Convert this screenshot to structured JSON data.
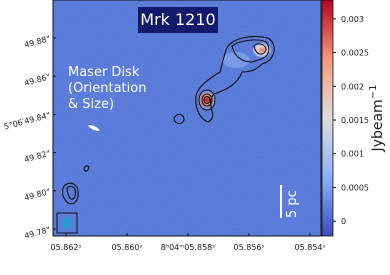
{
  "chart_data": {
    "type": "image",
    "title": "Mrk 1210",
    "annotation": [
      "Maser Disk",
      "(Orientation",
      "& Size)"
    ],
    "scale_bar_label": "5 pc",
    "x_tick_labels": [
      "05.862ˢ",
      "05.860ˢ",
      "8ʰ04ᵐ05.858ˢ",
      "05.856ˢ",
      "05.854ˢ"
    ],
    "y_tick_labels": [
      "49.88\"",
      "49.86\"",
      "5°06′49.84\"",
      "49.82\"",
      "49.80\"",
      "49.78\""
    ],
    "colorbar_label": {
      "base": "Jybeam",
      "exponent": "−1"
    },
    "clim": [
      -0.00022,
      0.00328
    ],
    "cticks": [
      0,
      0.0005,
      0.001,
      0.0015,
      0.002,
      0.0025,
      0.003
    ],
    "colormap": [
      "#3b4cc0",
      "#8db0fe",
      "#dddddd",
      "#f49a7b",
      "#b40426"
    ]
  }
}
